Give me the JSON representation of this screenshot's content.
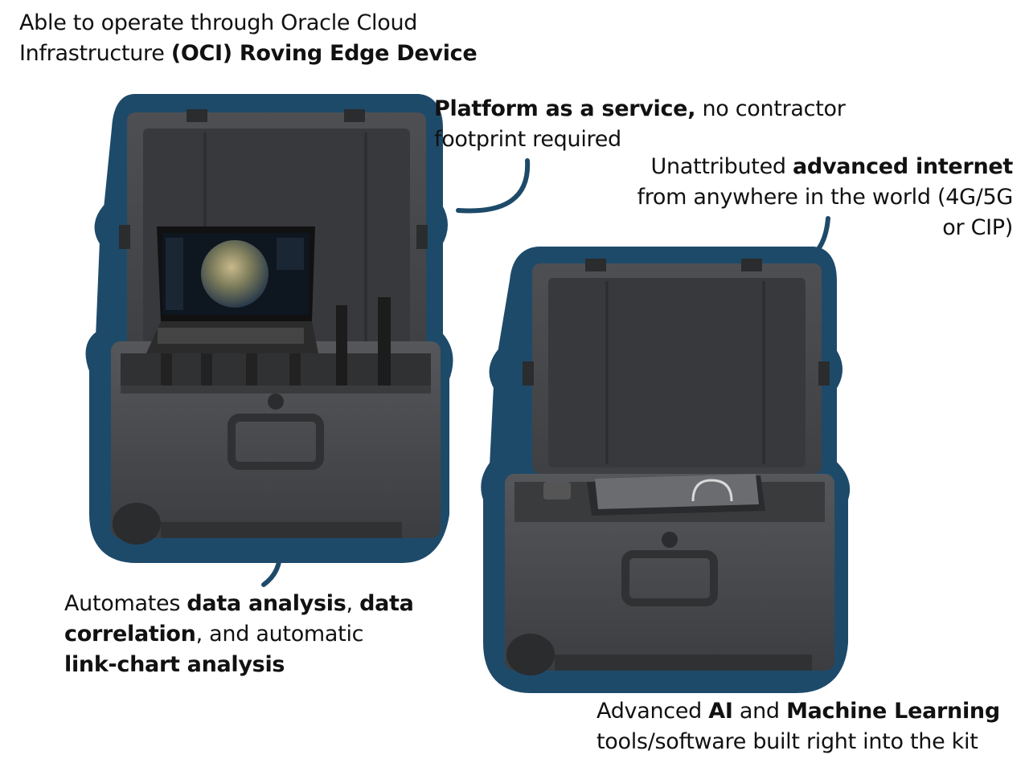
{
  "callouts": {
    "oci": {
      "line1": "Able to operate through Oracle Cloud",
      "line2_plain": "Infrastructure ",
      "line2_bold": "(OCI) Roving Edge Device"
    },
    "paas": {
      "bold": "Platform as a service,",
      "plain": " no contractor",
      "line2": "footprint required"
    },
    "internet": {
      "plain1": "Unattributed ",
      "bold1": "advanced internet",
      "line2": "from anywhere in the world (4G/5G",
      "line3": "or CIP)"
    },
    "analysis": {
      "plain1": "Automates ",
      "bold1": "data analysis",
      "plain2": ", ",
      "bold2": "data",
      "bold3": "correlation",
      "plain3": ", and automatic",
      "bold4": "link-chart analysis"
    },
    "ai": {
      "plain1": "Advanced ",
      "bold1": "AI",
      "plain2": " and ",
      "bold2": "Machine Learning",
      "line2": "tools/software built right into the kit"
    }
  },
  "colors": {
    "outline": "#1e4a6a",
    "case": "#4a4c4f",
    "case_dark": "#2f3133",
    "foam": "#3a3b3d"
  }
}
